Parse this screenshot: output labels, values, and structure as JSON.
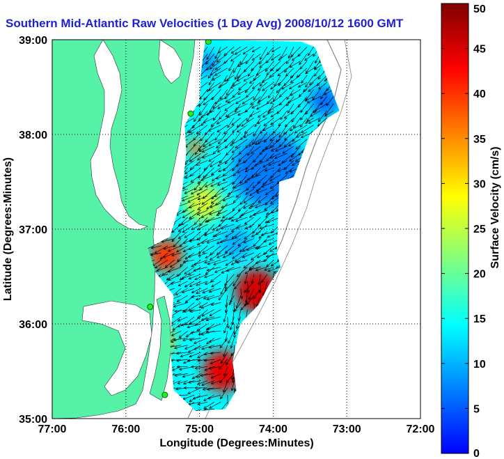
{
  "chart_data": {
    "type": "heatmap",
    "title": "Southern Mid-Atlantic Raw Velocities (1 Day Avg) 2008/10/12 1600 GMT",
    "xlabel": "Longitude (Degrees:Minutes)",
    "ylabel": "Latitude (Degrees:Minutes)",
    "xlim": [
      -77,
      -72
    ],
    "ylim": [
      35,
      39
    ],
    "x_ticks": [
      {
        "value": -77,
        "label": "77:00"
      },
      {
        "value": -76,
        "label": "76:00"
      },
      {
        "value": -75,
        "label": "75:00"
      },
      {
        "value": -74,
        "label": "74:00"
      },
      {
        "value": -73,
        "label": "73:00"
      },
      {
        "value": -72,
        "label": "72:00"
      }
    ],
    "y_ticks": [
      {
        "value": 35,
        "label": "35:00"
      },
      {
        "value": 36,
        "label": "36:00"
      },
      {
        "value": 37,
        "label": "37:00"
      },
      {
        "value": 38,
        "label": "38:00"
      },
      {
        "value": 39,
        "label": "39:00"
      }
    ],
    "grid": true,
    "colorbar": {
      "label": "Surface Velocity (cm/s)",
      "min": 0,
      "max": 50,
      "ticks": [
        {
          "value": 0,
          "label": "0"
        },
        {
          "value": 5,
          "label": "5"
        },
        {
          "value": 10,
          "label": "10"
        },
        {
          "value": 15,
          "label": "15"
        },
        {
          "value": 20,
          "label": "20"
        },
        {
          "value": 25,
          "label": "25"
        },
        {
          "value": 30,
          "label": "30"
        },
        {
          "value": 35,
          "label": "35"
        },
        {
          "value": 40,
          "label": "40"
        },
        {
          "value": 45,
          "label": "45"
        },
        {
          "value": 50,
          "label": "50"
        }
      ],
      "stops": [
        "#0000ff",
        "#0080ff",
        "#00ffff",
        "#80ff80",
        "#ffff00",
        "#ff8000",
        "#ff0000",
        "#800000"
      ]
    },
    "land_color": "#55f2a8",
    "stations": [
      {
        "lon": -74.88,
        "lat": 38.98
      },
      {
        "lon": -75.12,
        "lat": 38.22
      },
      {
        "lon": -75.67,
        "lat": 36.18
      },
      {
        "lon": -75.47,
        "lat": 35.25
      }
    ],
    "speed_hotspots": [
      {
        "lon": -75.06,
        "lat": 37.86,
        "speed": 36,
        "radius": 0.11
      },
      {
        "lon": -75.45,
        "lat": 36.72,
        "speed": 40,
        "radius": 0.22
      },
      {
        "lon": -75.55,
        "lat": 35.82,
        "speed": 32,
        "radius": 0.2
      },
      {
        "lon": -74.22,
        "lat": 36.35,
        "speed": 45,
        "radius": 0.3
      },
      {
        "lon": -74.68,
        "lat": 35.5,
        "speed": 44,
        "radius": 0.28
      },
      {
        "lon": -74.05,
        "lat": 37.62,
        "speed": 7,
        "radius": 0.5
      },
      {
        "lon": -73.3,
        "lat": 38.35,
        "speed": 6,
        "radius": 0.2
      },
      {
        "lon": -74.9,
        "lat": 38.75,
        "speed": 8,
        "radius": 0.15
      },
      {
        "lon": -74.5,
        "lat": 36.85,
        "speed": 10,
        "radius": 0.22
      },
      {
        "lon": -74.95,
        "lat": 37.28,
        "speed": 26,
        "radius": 0.25
      }
    ]
  }
}
